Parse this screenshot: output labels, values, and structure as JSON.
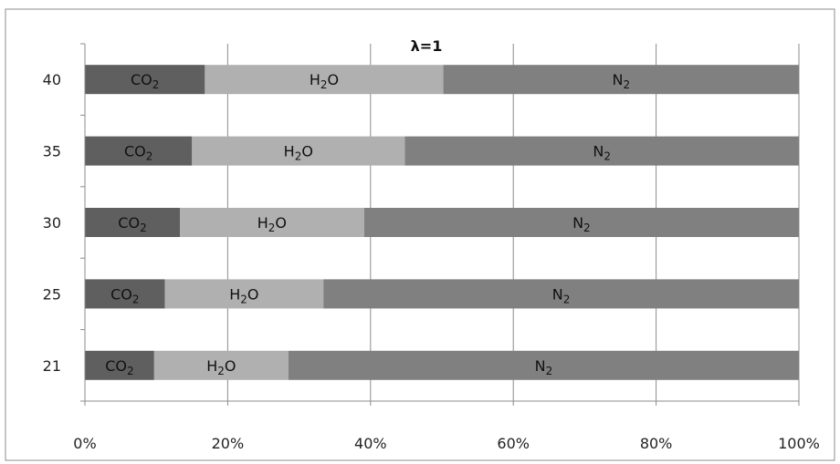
{
  "chart_data": {
    "type": "bar",
    "orientation": "horizontal",
    "stacked": "100%",
    "title": "λ=1",
    "categories": [
      "21",
      "25",
      "30",
      "35",
      "40"
    ],
    "series": [
      {
        "name": "CO2",
        "label_main": "CO",
        "label_sub": "2",
        "color": "#5f5f5f",
        "values": [
          9.7,
          11.2,
          13.3,
          15.0,
          16.8
        ]
      },
      {
        "name": "H2O",
        "label_main": "H",
        "label_sub": "2",
        "label_tail": "O",
        "color": "#b0b0b0",
        "values": [
          18.8,
          22.2,
          25.8,
          29.8,
          33.4
        ]
      },
      {
        "name": "N2",
        "label_main": "N",
        "label_sub": "2",
        "color": "#808080",
        "values": [
          71.5,
          66.6,
          60.9,
          55.2,
          49.8
        ]
      }
    ],
    "x_ticks": [
      "0%",
      "20%",
      "40%",
      "60%",
      "80%",
      "100%"
    ],
    "xlim": [
      0,
      100
    ],
    "grid": true,
    "legend": "none"
  }
}
